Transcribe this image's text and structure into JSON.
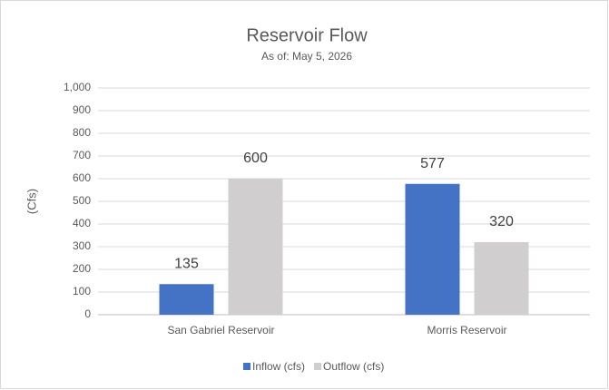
{
  "chart_data": {
    "type": "bar",
    "title": "Reservoir Flow",
    "subtitle": "As of: May 5, 2026",
    "y_label": "(Cfs)",
    "categories": [
      "San Gabriel Reservoir",
      "Morris Reservoir"
    ],
    "series": [
      {
        "name": "Inflow (cfs)",
        "color": "#4472c4",
        "values": [
          135,
          577
        ]
      },
      {
        "name": "Outflow (cfs)",
        "color": "#d0cece",
        "values": [
          600,
          320
        ]
      }
    ],
    "ylim": [
      0,
      1000
    ],
    "yticks": [
      0,
      100,
      200,
      300,
      400,
      500,
      600,
      700,
      800,
      900,
      {
        "value": 1000,
        "label": "1,000"
      }
    ],
    "grid": true,
    "legend": "bottom"
  }
}
